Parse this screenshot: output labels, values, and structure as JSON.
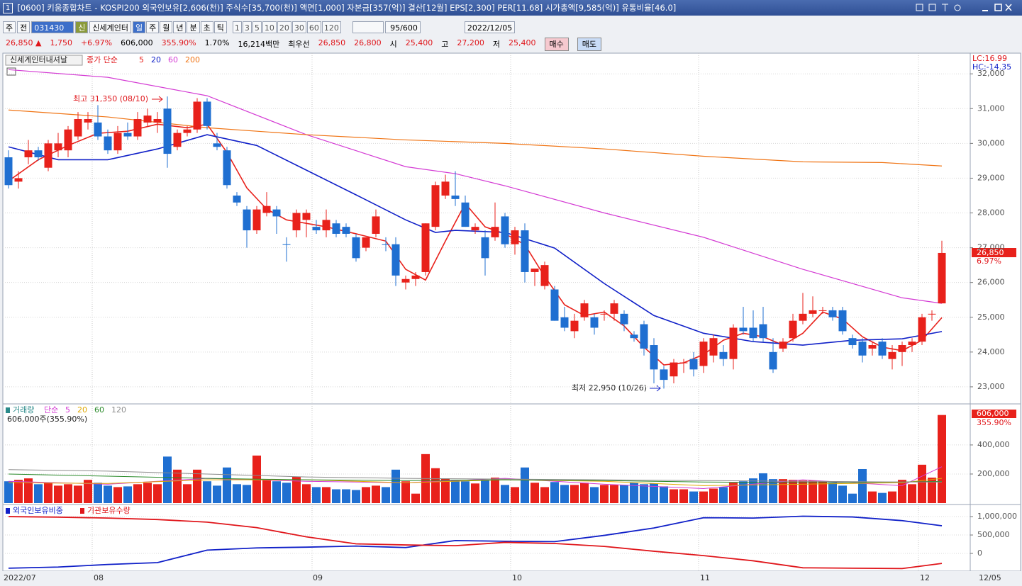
{
  "window": {
    "badge": "1",
    "title": "[0600] 키움종합차트 - KOSPI200 외국인보유[2,606(천)] 주식수[35,700(천)] 액면[1,000] 자본금[357(억)] 결산[12월] EPS[2,300] PER[11.68] 시가총액[9,585(억)] 유통비율[46.0]"
  },
  "toolbar": {
    "market": "주",
    "prev": "전",
    "code": "031430",
    "badge": "신",
    "name": "신세계인터",
    "periods": [
      "일",
      "주",
      "월",
      "년",
      "분",
      "초",
      "틱"
    ],
    "intervals": [
      "1",
      "3",
      "5",
      "10",
      "20",
      "30",
      "60",
      "120"
    ],
    "count": "95/600",
    "date": "2022/12/05"
  },
  "quote": {
    "items": [
      {
        "text": "26,850 ▲",
        "color": "#e0161b"
      },
      {
        "text": "1,750",
        "color": "#e0161b"
      },
      {
        "text": "+6.97%",
        "color": "#e0161b"
      },
      {
        "text": "606,000",
        "color": "#000000"
      },
      {
        "text": "355.90%",
        "color": "#e0161b"
      },
      {
        "text": "1.70%",
        "color": "#000000"
      },
      {
        "text": "16,214백만",
        "color": "#000000"
      },
      {
        "text": "최우선",
        "color": "#000000"
      },
      {
        "text": "26,850",
        "color": "#e0161b"
      },
      {
        "text": "26,800",
        "color": "#e0161b"
      },
      {
        "text": "시",
        "color": "#000000"
      },
      {
        "text": "25,400",
        "color": "#e0161b"
      },
      {
        "text": "고",
        "color": "#000000"
      },
      {
        "text": "27,200",
        "color": "#e0161b"
      },
      {
        "text": "저",
        "color": "#000000"
      },
      {
        "text": "25,400",
        "color": "#e0161b"
      }
    ],
    "buy": "매수",
    "sell": "매도"
  },
  "price_chart": {
    "type": "candlestick",
    "stock_name": "신세계인터내셔날",
    "ma_label": "종가 단순",
    "up_color": "#e8211b",
    "down_color": "#1f6fd1",
    "open": [
      29600,
      28900,
      29600,
      29800,
      29300,
      29800,
      29800,
      30200,
      30600,
      30600,
      30200,
      29800,
      30300,
      30200,
      30600,
      30600,
      31000,
      29900,
      30300,
      30400,
      31200,
      30000,
      29800,
      28500,
      28100,
      27500,
      28000,
      28100,
      27100,
      27500,
      27800,
      27600,
      27500,
      27700,
      27600,
      27300,
      27000,
      27400,
      27100,
      27100,
      26000,
      26100,
      26300,
      27600,
      28500,
      28500,
      28300,
      27500,
      27300,
      27300,
      27900,
      27100,
      27500,
      26300,
      25900,
      25800,
      25000,
      24600,
      25000,
      25000,
      25100,
      25100,
      25100,
      24500,
      24800,
      24200,
      23500,
      23300,
      23700,
      23800,
      23600,
      23900,
      24000,
      23800,
      24700,
      24700,
      24800,
      24000,
      24100,
      24400,
      24900,
      25100,
      25200,
      25200,
      25200,
      24400,
      24300,
      24100,
      24300,
      23800,
      24000,
      24200,
      24300,
      25100,
      25400
    ],
    "high": [
      29800,
      29200,
      30100,
      29900,
      30100,
      30300,
      30500,
      30900,
      30900,
      31100,
      30400,
      30500,
      30600,
      30900,
      31000,
      30900,
      31350,
      30400,
      30500,
      31300,
      31300,
      30300,
      29900,
      28600,
      28200,
      28200,
      28600,
      28200,
      27300,
      28100,
      28100,
      27800,
      28100,
      27800,
      27700,
      27400,
      27300,
      28100,
      27300,
      27300,
      26200,
      26300,
      27700,
      28900,
      29100,
      29200,
      28500,
      27700,
      27500,
      28300,
      28000,
      27600,
      27700,
      26400,
      26600,
      25900,
      25300,
      25100,
      25500,
      25100,
      25200,
      25500,
      25200,
      24600,
      24900,
      24400,
      23600,
      23800,
      23800,
      24000,
      24400,
      24500,
      24200,
      24800,
      25300,
      25200,
      25300,
      24400,
      24400,
      25100,
      25700,
      25600,
      25300,
      25300,
      25300,
      24500,
      24400,
      24300,
      24400,
      24200,
      24300,
      24400,
      25100,
      25200,
      27200
    ],
    "low": [
      28700,
      28700,
      29400,
      29500,
      29200,
      29600,
      29600,
      30100,
      30400,
      30100,
      29700,
      29700,
      30100,
      30100,
      30500,
      30300,
      29300,
      29800,
      30200,
      30300,
      30400,
      29800,
      28700,
      28200,
      27000,
      27400,
      27900,
      27400,
      26600,
      27300,
      27300,
      27400,
      27300,
      27300,
      27300,
      26600,
      26900,
      27300,
      26900,
      25900,
      25800,
      25900,
      26200,
      27500,
      28400,
      28200,
      27600,
      27400,
      26200,
      27200,
      27000,
      26800,
      26000,
      25900,
      25800,
      24900,
      24600,
      24400,
      24900,
      24500,
      24900,
      24900,
      24600,
      24300,
      23900,
      23100,
      22950,
      23100,
      23400,
      23300,
      23400,
      23700,
      23600,
      23500,
      24500,
      24300,
      24300,
      23400,
      24000,
      24300,
      24800,
      25000,
      25100,
      24900,
      24500,
      24100,
      23700,
      23900,
      23800,
      23500,
      23600,
      24000,
      24200,
      24900,
      25400
    ],
    "close": [
      28800,
      29000,
      29800,
      29600,
      30000,
      30000,
      30400,
      30700,
      30700,
      30200,
      29800,
      30300,
      30200,
      30700,
      30800,
      30700,
      29700,
      30300,
      30400,
      31200,
      30500,
      29900,
      28800,
      28300,
      27500,
      28100,
      28200,
      27900,
      27100,
      28000,
      28000,
      27500,
      27800,
      27400,
      27400,
      26700,
      27300,
      27900,
      27100,
      26200,
      26100,
      26200,
      27700,
      28800,
      28900,
      28400,
      27600,
      27600,
      26700,
      27600,
      27100,
      27500,
      26300,
      26400,
      26500,
      24900,
      24700,
      24900,
      25400,
      24700,
      25100,
      25400,
      24800,
      24400,
      24100,
      23500,
      23200,
      23700,
      23700,
      23500,
      24300,
      24400,
      23800,
      24700,
      24600,
      24400,
      24400,
      23500,
      24300,
      24900,
      25100,
      25200,
      25200,
      25000,
      24600,
      24200,
      23900,
      24200,
      23900,
      24000,
      24200,
      24300,
      25000,
      25100,
      26850
    ],
    "ma_series": [
      {
        "name": "5",
        "color": "#e8211b",
        "x": [
          0,
          3,
          6,
          9,
          12,
          15,
          18,
          20,
          22,
          24,
          26,
          28,
          32,
          35,
          38,
          40,
          42,
          44,
          46,
          48,
          50,
          52,
          54,
          56,
          58,
          60,
          62,
          64,
          66,
          68,
          70,
          72,
          74,
          76,
          78,
          80,
          82,
          84,
          86,
          88,
          90,
          92,
          94
        ],
        "values": [
          28920,
          29530,
          29940,
          30290,
          30350,
          30550,
          30450,
          30550,
          29740,
          28720,
          28110,
          27800,
          27600,
          27400,
          27190,
          26380,
          26070,
          27190,
          28270,
          27600,
          27400,
          27090,
          26170,
          25360,
          25050,
          25150,
          24750,
          24140,
          23630,
          23690,
          23930,
          24340,
          24540,
          24440,
          24200,
          24540,
          25150,
          24950,
          24440,
          24140,
          24040,
          24340,
          24990
        ]
      },
      {
        "name": "20",
        "color": "#1020c8",
        "x": [
          0,
          5,
          10,
          15,
          20,
          25,
          30,
          35,
          40,
          43,
          45,
          50,
          55,
          60,
          65,
          70,
          75,
          80,
          85,
          90,
          94
        ],
        "values": [
          29900,
          29530,
          29530,
          29840,
          30250,
          29940,
          29230,
          28520,
          27800,
          27440,
          27500,
          27440,
          26990,
          25970,
          25050,
          24540,
          24300,
          24200,
          24340,
          24380,
          24590
        ]
      },
      {
        "name": "60",
        "color": "#d43cd4",
        "x": [
          0,
          10,
          20,
          30,
          40,
          45,
          50,
          60,
          70,
          80,
          90,
          94
        ],
        "values": [
          32120,
          31900,
          31370,
          30250,
          29330,
          29130,
          28780,
          28000,
          27300,
          26380,
          25560,
          25400
        ]
      },
      {
        "name": "200",
        "color": "#f07414",
        "x": [
          0,
          10,
          20,
          30,
          40,
          50,
          60,
          70,
          80,
          88,
          94
        ],
        "values": [
          30960,
          30760,
          30450,
          30250,
          30100,
          30000,
          29840,
          29630,
          29470,
          29450,
          29350
        ]
      }
    ],
    "annotations": {
      "high": "최고 31,350 (08/10)",
      "low": "최저 22,950 (10/26)"
    },
    "lc": "LC:16.99",
    "hc": "HC:-14.35",
    "last_price": "26,850",
    "last_change": "6.97%",
    "ylim": [
      22550,
      32330
    ],
    "yticks": [
      {
        "value": 23000,
        "label": "23,000"
      },
      {
        "value": 24000,
        "label": "24,000"
      },
      {
        "value": 25000,
        "label": "25,000"
      },
      {
        "value": 26000,
        "label": "26,000"
      },
      {
        "value": 27000,
        "label": "27,000"
      },
      {
        "value": 28000,
        "label": "28,000"
      },
      {
        "value": 29000,
        "label": "29,000"
      },
      {
        "value": 30000,
        "label": "30,000"
      },
      {
        "value": 31000,
        "label": "31,000"
      },
      {
        "value": 32000,
        "label": "32,000"
      }
    ]
  },
  "volume_chart": {
    "type": "bar",
    "title": "거래량",
    "ma_label": "단순",
    "ma_label_color": "#d43cd4",
    "summary": "606,000주(355.90%)",
    "last_volume": "606,000",
    "last_ratio": "355.90%",
    "values": [
      150000,
      160000,
      170000,
      130000,
      140000,
      120000,
      130000,
      120000,
      160000,
      140000,
      120000,
      110000,
      115000,
      130000,
      140000,
      130000,
      320000,
      230000,
      130000,
      230000,
      150000,
      120000,
      245000,
      130000,
      125000,
      327000,
      160000,
      150000,
      140000,
      180000,
      130000,
      110000,
      110000,
      95000,
      95000,
      90000,
      110000,
      120000,
      110000,
      230000,
      150000,
      65000,
      337000,
      240000,
      170000,
      160000,
      150000,
      135000,
      160000,
      175000,
      125000,
      110000,
      245000,
      140000,
      110000,
      145000,
      125000,
      125000,
      140000,
      110000,
      125000,
      125000,
      125000,
      140000,
      130000,
      135000,
      115000,
      95000,
      95000,
      80000,
      80000,
      100000,
      110000,
      140000,
      150000,
      170000,
      205000,
      165000,
      165000,
      160000,
      155000,
      155000,
      150000,
      140000,
      120000,
      65000,
      234000,
      80000,
      70000,
      80000,
      160000,
      130000,
      264000,
      175000,
      606000
    ],
    "ma_series": [
      {
        "name": "5",
        "color": "#d43cd4",
        "x": [
          0,
          10,
          20,
          30,
          40,
          50,
          60,
          70,
          80,
          90,
          94
        ],
        "values": [
          150000,
          130000,
          170000,
          150000,
          140000,
          170000,
          130000,
          100000,
          160000,
          120000,
          250000
        ]
      },
      {
        "name": "20",
        "color": "#e0a800",
        "x": [
          0,
          10,
          20,
          30,
          40,
          50,
          60,
          70,
          80,
          90,
          94
        ],
        "values": [
          140000,
          135000,
          160000,
          160000,
          140000,
          160000,
          150000,
          120000,
          130000,
          140000,
          170000
        ]
      },
      {
        "name": "60",
        "color": "#2a8a2a",
        "x": [
          0,
          10,
          20,
          30,
          40,
          50,
          60,
          70,
          80,
          90,
          94
        ],
        "values": [
          200000,
          185000,
          170000,
          160000,
          155000,
          160000,
          155000,
          145000,
          140000,
          145000,
          150000
        ]
      },
      {
        "name": "120",
        "color": "#8c8c8c",
        "x": [
          0,
          10,
          20,
          30,
          40,
          50,
          60,
          70,
          80,
          90,
          94
        ],
        "values": [
          230000,
          220000,
          200000,
          180000,
          170000,
          165000,
          160000,
          155000,
          150000,
          145000,
          145000
        ]
      }
    ],
    "ylim": [
      0,
      658000
    ],
    "yticks": [
      {
        "value": 200000,
        "label": "200,000"
      },
      {
        "value": 400000,
        "label": "400,000"
      }
    ]
  },
  "holdings_chart": {
    "type": "line",
    "series": [
      {
        "name": "외국인보유비중",
        "color": "#1020c8",
        "x": [
          0,
          5,
          10,
          15,
          20,
          25,
          30,
          35,
          40,
          45,
          50,
          55,
          60,
          65,
          70,
          75,
          80,
          85,
          90,
          94
        ],
        "values": [
          -400000,
          -370000,
          -300000,
          -250000,
          90000,
          150000,
          170000,
          200000,
          160000,
          350000,
          330000,
          320000,
          490000,
          690000,
          970000,
          960000,
          1010000,
          990000,
          890000,
          750000
        ]
      },
      {
        "name": "기관보유수량",
        "color": "#e0161b",
        "x": [
          0,
          5,
          10,
          15,
          20,
          25,
          30,
          35,
          40,
          45,
          50,
          55,
          60,
          65,
          70,
          75,
          80,
          85,
          90,
          94
        ],
        "values": [
          1000000,
          985000,
          960000,
          920000,
          850000,
          700000,
          450000,
          260000,
          230000,
          210000,
          300000,
          270000,
          190000,
          60000,
          -60000,
          -200000,
          -390000,
          -400000,
          -410000,
          -270000
        ]
      }
    ],
    "ylim": [
      -480000,
      1270000
    ],
    "yticks": [
      0,
      {
        "value": 500000,
        "label": "500,000"
      },
      {
        "value": 1000000,
        "label": "1,000,000"
      }
    ]
  },
  "x_axis": {
    "labels": [
      "2022/07",
      "08",
      "09",
      "10",
      "11",
      "12",
      "12/05"
    ]
  }
}
